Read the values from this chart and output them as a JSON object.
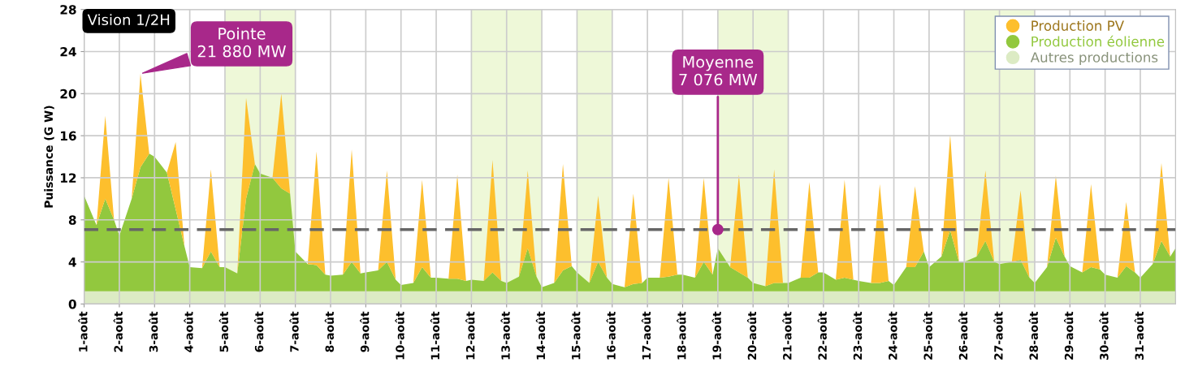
{
  "chart_data": {
    "type": "area",
    "stacked": true,
    "title": "Vision 1/2H",
    "ylabel": "Puissance (G W)",
    "x": [
      1,
      1.35,
      1.6,
      1.85,
      2,
      2.35,
      2.6,
      2.85,
      3,
      3.35,
      3.6,
      3.85,
      4,
      4.35,
      4.6,
      4.85,
      5,
      5.35,
      5.6,
      5.85,
      6,
      6.35,
      6.6,
      6.85,
      7,
      7.35,
      7.6,
      7.85,
      8,
      8.35,
      8.6,
      8.85,
      9,
      9.35,
      9.6,
      9.85,
      10,
      10.35,
      10.6,
      10.85,
      11,
      11.35,
      11.6,
      11.85,
      12,
      12.35,
      12.6,
      12.85,
      13,
      13.35,
      13.6,
      13.85,
      14,
      14.35,
      14.6,
      14.85,
      15,
      15.35,
      15.6,
      15.85,
      16,
      16.35,
      16.6,
      16.85,
      17,
      17.35,
      17.6,
      17.85,
      18,
      18.35,
      18.6,
      18.85,
      19,
      19.35,
      19.6,
      19.85,
      20,
      20.35,
      20.6,
      20.85,
      21,
      21.35,
      21.6,
      21.85,
      22,
      22.35,
      22.6,
      22.85,
      23,
      23.35,
      23.6,
      23.85,
      24,
      24.35,
      24.6,
      24.85,
      25,
      25.35,
      25.6,
      25.85,
      26,
      26.35,
      26.6,
      26.85,
      27,
      27.35,
      27.6,
      27.85,
      28,
      28.35,
      28.6,
      28.85,
      29,
      29.35,
      29.6,
      29.85,
      30,
      30.35,
      30.6,
      30.85,
      31,
      31.35,
      31.6,
      31.85,
      32
    ],
    "series": [
      {
        "name": "Autres productions",
        "color": "#dcebc4",
        "values": [
          1.2,
          1.2,
          1.2,
          1.2,
          1.2,
          1.2,
          1.2,
          1.2,
          1.2,
          1.2,
          1.2,
          1.2,
          1.2,
          1.2,
          1.2,
          1.2,
          1.2,
          1.2,
          1.2,
          1.2,
          1.2,
          1.2,
          1.2,
          1.2,
          1.2,
          1.2,
          1.2,
          1.2,
          1.2,
          1.2,
          1.2,
          1.2,
          1.2,
          1.2,
          1.2,
          1.2,
          1.2,
          1.2,
          1.2,
          1.2,
          1.2,
          1.2,
          1.2,
          1.2,
          1.2,
          1.2,
          1.2,
          1.2,
          1.2,
          1.2,
          1.2,
          1.2,
          1.2,
          1.2,
          1.2,
          1.2,
          1.2,
          1.2,
          1.2,
          1.2,
          1.2,
          1.2,
          1.2,
          1.2,
          1.2,
          1.2,
          1.2,
          1.2,
          1.2,
          1.2,
          1.2,
          1.2,
          1.2,
          1.2,
          1.2,
          1.2,
          1.2,
          1.2,
          1.2,
          1.2,
          1.2,
          1.2,
          1.2,
          1.2,
          1.2,
          1.2,
          1.2,
          1.2,
          1.2,
          1.2,
          1.2,
          1.2,
          1.2,
          1.2,
          1.2,
          1.2,
          1.2,
          1.2,
          1.2,
          1.2,
          1.2,
          1.2,
          1.2,
          1.2,
          1.2,
          1.2,
          1.2,
          1.2,
          1.2,
          1.2,
          1.2,
          1.2,
          1.2,
          1.2,
          1.2,
          1.2,
          1.2,
          1.2,
          1.2,
          1.2,
          1.2,
          1.2,
          1.2,
          1.2,
          1.2
        ]
      },
      {
        "name": "Production éolienne",
        "color": "#92c83e",
        "values": [
          9.1,
          6.3,
          8.8,
          6.8,
          5.3,
          8.8,
          11.8,
          13.1,
          12.8,
          11.3,
          7.8,
          4.3,
          2.3,
          2.2,
          3.8,
          2.3,
          2.3,
          1.7,
          8.8,
          12.1,
          11.2,
          10.8,
          9.8,
          9.3,
          3.8,
          2.6,
          2.5,
          1.6,
          1.5,
          1.6,
          2.8,
          1.7,
          1.8,
          2.0,
          2.8,
          1.1,
          0.6,
          0.8,
          2.3,
          1.3,
          1.3,
          1.2,
          1.2,
          1.0,
          1.1,
          1.0,
          1.8,
          1.0,
          0.8,
          1.4,
          4.1,
          1.4,
          0.4,
          0.8,
          2.0,
          2.4,
          1.8,
          0.8,
          2.8,
          1.3,
          0.7,
          0.4,
          0.7,
          0.8,
          1.3,
          1.3,
          1.4,
          1.6,
          1.6,
          1.3,
          2.8,
          1.6,
          4.1,
          2.3,
          1.8,
          1.3,
          0.8,
          0.5,
          0.8,
          0.8,
          0.8,
          1.3,
          1.3,
          1.8,
          1.8,
          1.1,
          1.3,
          1.1,
          1.0,
          0.8,
          0.8,
          1.0,
          0.6,
          2.3,
          2.3,
          3.8,
          2.3,
          3.3,
          5.8,
          2.8,
          2.8,
          3.3,
          4.8,
          2.8,
          2.6,
          2.8,
          3.0,
          1.3,
          0.8,
          2.3,
          5.1,
          3.3,
          2.4,
          1.8,
          2.3,
          2.1,
          1.6,
          1.3,
          2.4,
          1.8,
          1.3,
          2.6,
          4.8,
          3.3,
          4.1
        ]
      },
      {
        "name": "Production PV",
        "color": "#fdbf2d",
        "values": [
          0,
          0,
          7.9,
          0,
          0,
          0,
          8.88,
          0,
          0,
          0,
          6.4,
          0,
          0,
          0,
          7.8,
          0,
          0,
          0,
          9.6,
          0,
          0,
          0,
          9.0,
          0,
          0,
          0,
          10.8,
          0,
          0,
          0,
          10.7,
          0,
          0,
          0,
          8.7,
          0,
          0,
          0,
          8.3,
          0,
          0,
          0,
          9.9,
          0,
          0,
          0,
          10.7,
          0,
          0,
          0,
          7.4,
          0,
          0,
          0,
          10.1,
          0,
          0,
          0,
          6.3,
          0,
          0,
          0,
          8.6,
          0,
          0,
          0,
          9.4,
          0,
          0,
          0,
          8.0,
          0,
          0,
          0,
          9.3,
          0,
          0,
          0,
          10.8,
          0,
          0,
          0,
          9.1,
          0,
          0,
          0,
          9.3,
          0,
          0,
          0,
          9.4,
          0,
          0,
          0,
          7.7,
          0,
          0,
          0,
          9.1,
          0,
          0,
          0,
          6.7,
          0,
          0,
          0,
          6.6,
          0,
          0,
          0,
          5.9,
          0,
          0,
          0,
          7.9,
          0,
          0,
          0,
          6.1,
          0,
          0,
          0,
          7.4,
          0,
          0
        ]
      }
    ],
    "xlim": [
      1,
      32
    ],
    "xticks": [
      {
        "value": 1,
        "label": "1-août"
      },
      {
        "value": 2,
        "label": "2-août"
      },
      {
        "value": 3,
        "label": "3-août"
      },
      {
        "value": 4,
        "label": "4-août"
      },
      {
        "value": 5,
        "label": "5-août"
      },
      {
        "value": 6,
        "label": "6-août"
      },
      {
        "value": 7,
        "label": "7-août"
      },
      {
        "value": 8,
        "label": "8-août"
      },
      {
        "value": 9,
        "label": "9-août"
      },
      {
        "value": 10,
        "label": "10-août"
      },
      {
        "value": 11,
        "label": "11-août"
      },
      {
        "value": 12,
        "label": "12-août"
      },
      {
        "value": 13,
        "label": "13-août"
      },
      {
        "value": 14,
        "label": "14-août"
      },
      {
        "value": 15,
        "label": "15-août"
      },
      {
        "value": 16,
        "label": "16-août"
      },
      {
        "value": 17,
        "label": "17-août"
      },
      {
        "value": 18,
        "label": "18-août"
      },
      {
        "value": 19,
        "label": "19-août"
      },
      {
        "value": 20,
        "label": "20-août"
      },
      {
        "value": 21,
        "label": "21-août"
      },
      {
        "value": 22,
        "label": "22-août"
      },
      {
        "value": 23,
        "label": "23-août"
      },
      {
        "value": 24,
        "label": "24-août"
      },
      {
        "value": 25,
        "label": "25-août"
      },
      {
        "value": 26,
        "label": "26-août"
      },
      {
        "value": 27,
        "label": "27-août"
      },
      {
        "value": 28,
        "label": "28-août"
      },
      {
        "value": 29,
        "label": "29-août"
      },
      {
        "value": 30,
        "label": "30-août"
      },
      {
        "value": 31,
        "label": "31-août"
      }
    ],
    "ylim": [
      0,
      28
    ],
    "yticks": [
      0,
      4,
      8,
      12,
      16,
      20,
      24,
      28
    ],
    "grid": true,
    "legend": "top right",
    "bands": [
      {
        "axis": "x",
        "from": 5,
        "to": 7,
        "color": "#eef8d8"
      },
      {
        "axis": "x",
        "from": 12,
        "to": 14,
        "color": "#eef8d8"
      },
      {
        "axis": "x",
        "from": 15,
        "to": 16,
        "color": "#eef8d8"
      },
      {
        "axis": "x",
        "from": 19,
        "to": 21,
        "color": "#eef8d8"
      },
      {
        "axis": "x",
        "from": 26,
        "to": 28,
        "color": "#eef8d8"
      }
    ],
    "ref_lines": [
      {
        "axis": "y",
        "value": 7.076,
        "color": "#666666",
        "line_style": "dashed"
      }
    ],
    "annotations": [
      {
        "text": "Pointe\n21 880 MW",
        "x": 2.6,
        "y": 21.88
      },
      {
        "text": "Moyenne\n7 076 MW",
        "x": 19.0,
        "y": 7.076
      }
    ]
  }
}
